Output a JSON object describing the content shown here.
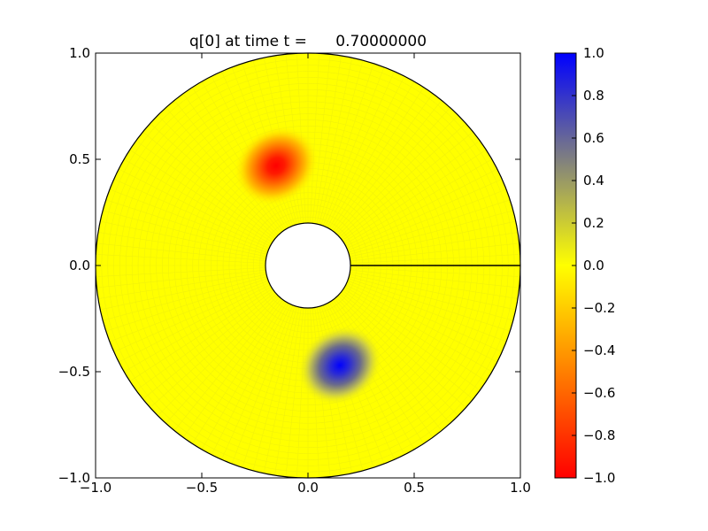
{
  "chart_data": {
    "type": "heatmap",
    "title": "q[0] at time t =      0.70000000",
    "xlabel": "",
    "ylabel": "",
    "xlim": [
      -1.0,
      1.0
    ],
    "ylim": [
      -1.0,
      1.0
    ],
    "x_ticks": [
      {
        "value": -1.0,
        "label": "−1.0"
      },
      {
        "value": -0.5,
        "label": "−0.5"
      },
      {
        "value": 0.0,
        "label": "0.0"
      },
      {
        "value": 0.5,
        "label": "0.5"
      },
      {
        "value": 1.0,
        "label": "1.0"
      }
    ],
    "y_ticks": [
      {
        "value": -1.0,
        "label": "−1.0"
      },
      {
        "value": -0.5,
        "label": "−0.5"
      },
      {
        "value": 0.0,
        "label": "0.0"
      },
      {
        "value": 0.5,
        "label": "0.5"
      },
      {
        "value": 1.0,
        "label": "1.0"
      }
    ],
    "domain": {
      "shape": "annulus",
      "inner_radius": 0.2,
      "outer_radius": 1.0,
      "cut_line": {
        "from": [
          0.2,
          0.0
        ],
        "to": [
          1.0,
          0.0
        ]
      }
    },
    "background_value": 0.0,
    "features": [
      {
        "name": "negative blob",
        "center": [
          -0.15,
          0.47
        ],
        "peak_value": -1.0,
        "radius": 0.2
      },
      {
        "name": "positive blob",
        "center": [
          0.15,
          -0.47
        ],
        "peak_value": 1.0,
        "radius": 0.2
      }
    ],
    "colorbar": {
      "range": [
        -1.0,
        1.0
      ],
      "stops": [
        {
          "value": -1.0,
          "color": "#ff0000"
        },
        {
          "value": 0.0,
          "color": "#ffff00"
        },
        {
          "value": 1.0,
          "color": "#0000ff"
        }
      ],
      "ticks": [
        {
          "value": 1.0,
          "label": "1.0"
        },
        {
          "value": 0.8,
          "label": "0.8"
        },
        {
          "value": 0.6,
          "label": "0.6"
        },
        {
          "value": 0.4,
          "label": "0.4"
        },
        {
          "value": 0.2,
          "label": "0.2"
        },
        {
          "value": 0.0,
          "label": "0.0"
        },
        {
          "value": -0.2,
          "label": "−0.2"
        },
        {
          "value": -0.4,
          "label": "−0.4"
        },
        {
          "value": -0.6,
          "label": "−0.6"
        },
        {
          "value": -0.8,
          "label": "−0.8"
        },
        {
          "value": -1.0,
          "label": "−1.0"
        }
      ]
    }
  }
}
